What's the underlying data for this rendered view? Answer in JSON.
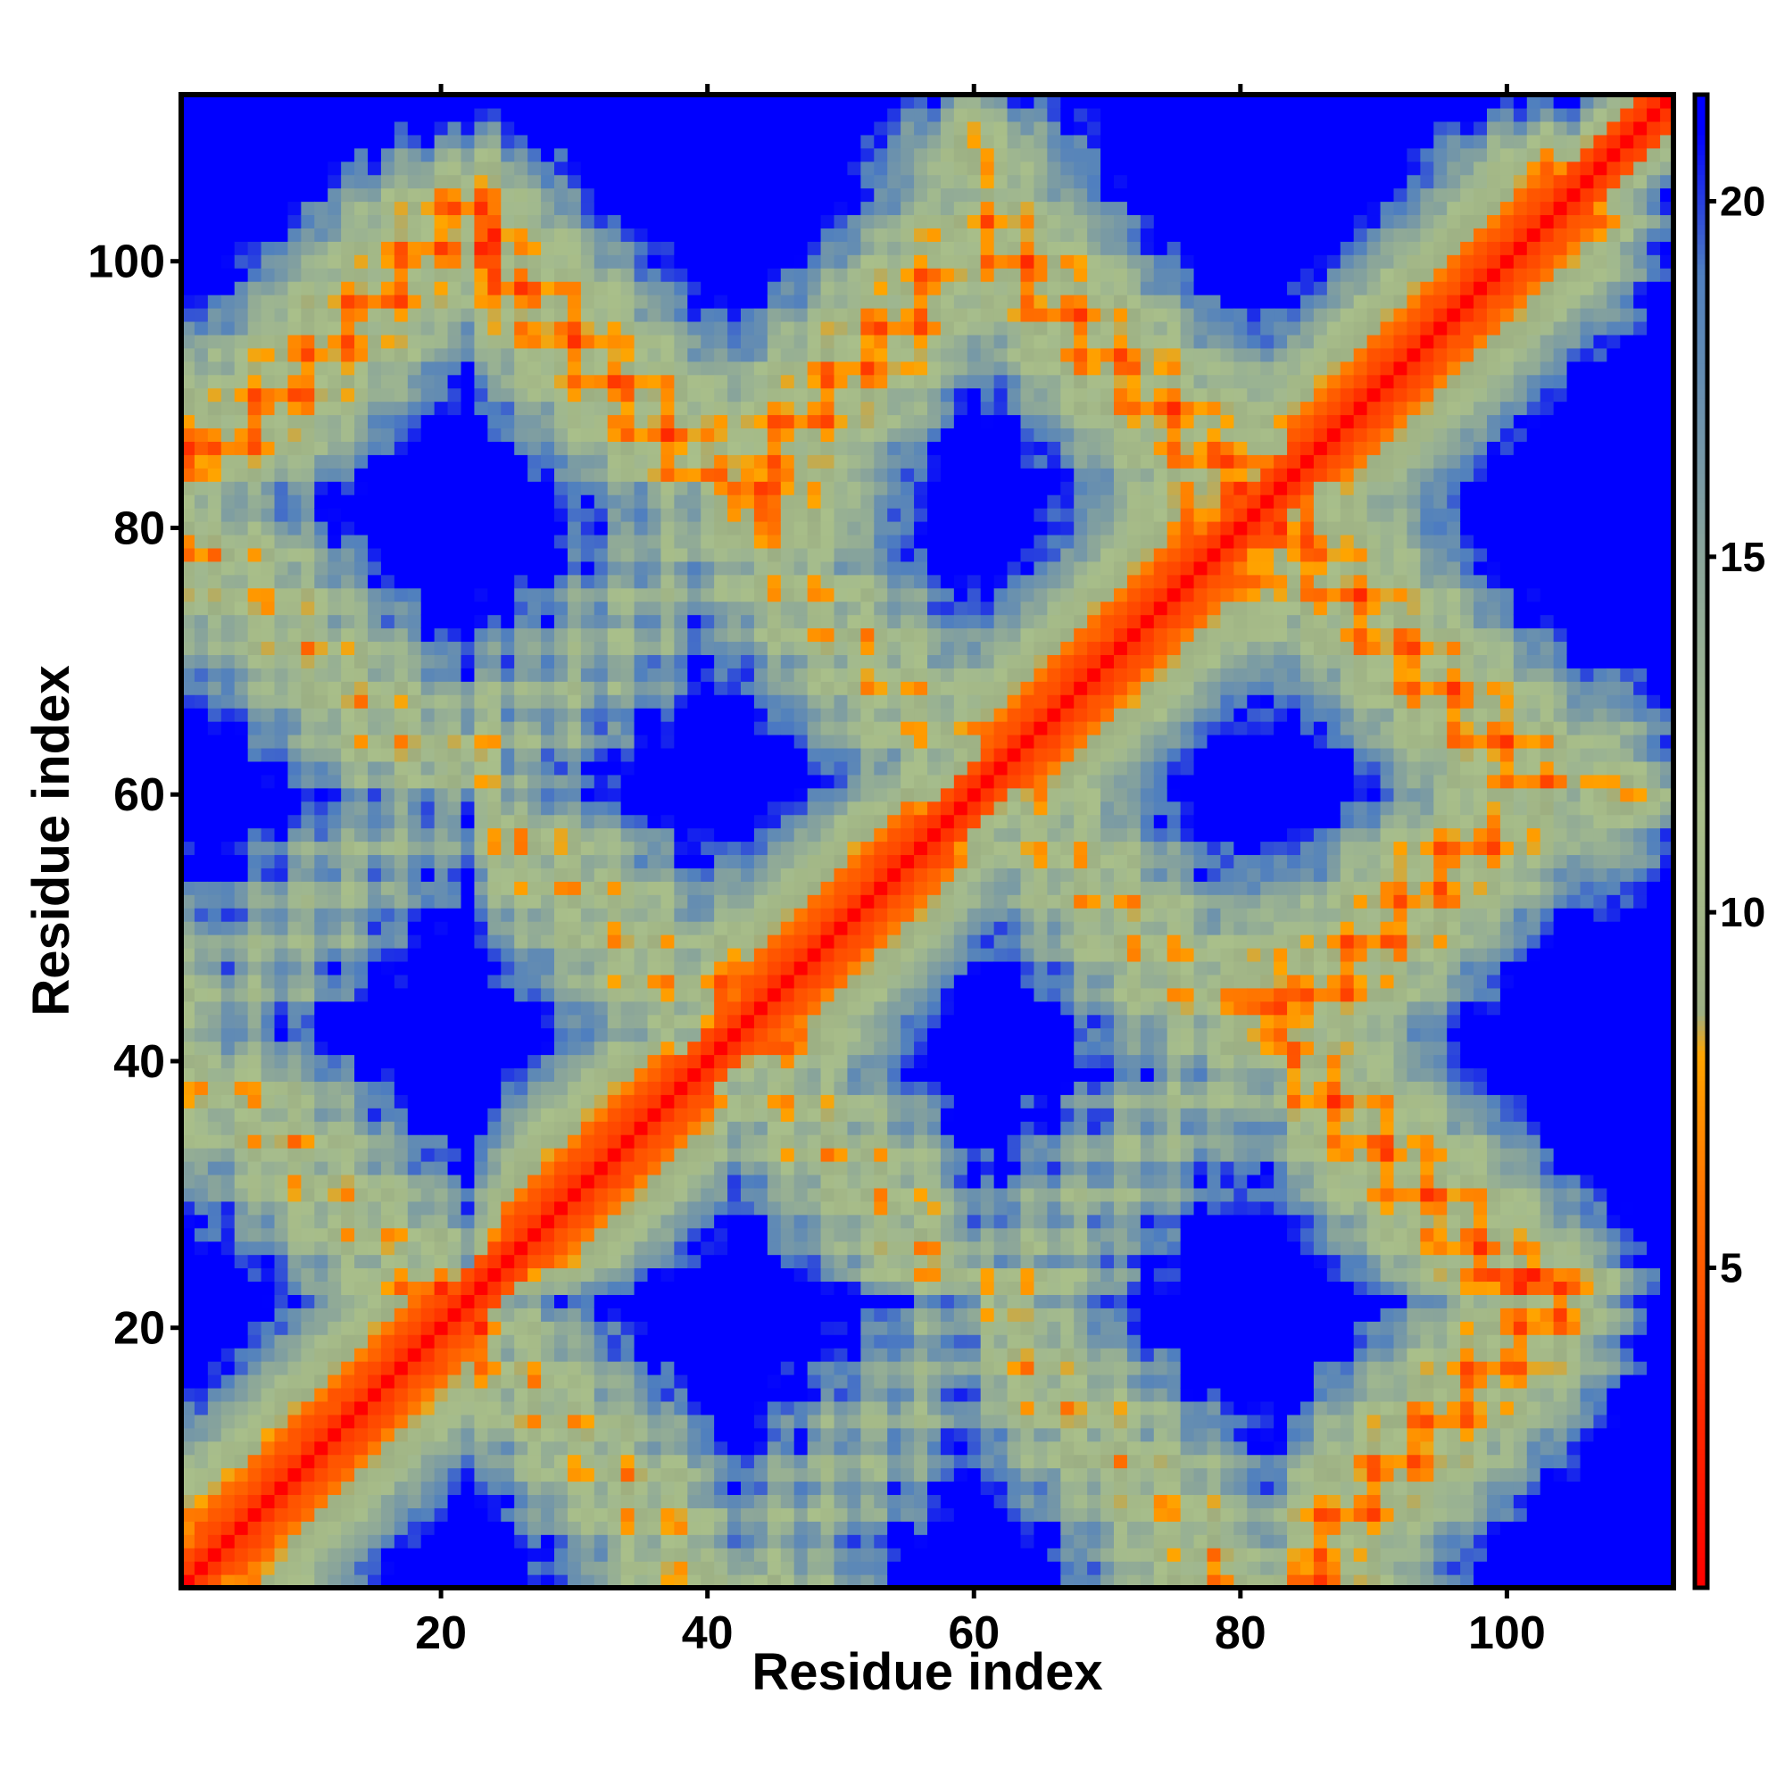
{
  "chart_data": {
    "type": "heatmap",
    "title": "",
    "xlabel": "Residue index",
    "ylabel": "Residue index",
    "n_residues": 112,
    "xlim": [
      1,
      112
    ],
    "ylim": [
      1,
      112
    ],
    "x_ticks": [
      20,
      40,
      60,
      80,
      100
    ],
    "y_ticks": [
      20,
      40,
      60,
      80,
      100
    ],
    "colorbar": {
      "ticks": [
        5,
        10,
        15,
        20
      ],
      "range": [
        0.5,
        21.5
      ],
      "stops": [
        {
          "value": 0.5,
          "color": "#ff0000"
        },
        {
          "value": 3.0,
          "color": "#ff2a00"
        },
        {
          "value": 5.5,
          "color": "#ff6600"
        },
        {
          "value": 8.0,
          "color": "#ffa500"
        },
        {
          "value": 8.6,
          "color": "#9caf84"
        },
        {
          "value": 11.5,
          "color": "#a9bf8a"
        },
        {
          "value": 15.0,
          "color": "#8aa59a"
        },
        {
          "value": 19.0,
          "color": "#4f7fbf"
        },
        {
          "value": 21.0,
          "color": "#0000ff"
        }
      ]
    },
    "cap_color": "#0000ff",
    "helices": [
      [
        2,
        22
      ],
      [
        25,
        40
      ],
      [
        43,
        58
      ],
      [
        61,
        79
      ],
      [
        84,
        106
      ]
    ],
    "noise": 0.15,
    "seed": 7
  }
}
